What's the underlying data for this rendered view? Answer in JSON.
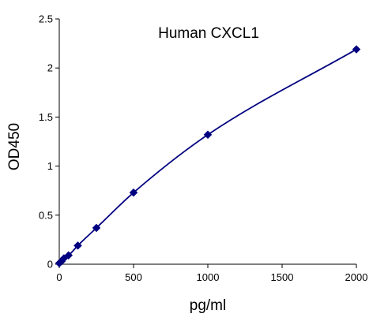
{
  "chart_data": {
    "type": "scatter",
    "title": "Human  CXCL1",
    "xlabel": "pg/ml",
    "ylabel": "OD450",
    "xlim": [
      0,
      2000
    ],
    "ylim": [
      0,
      2.5
    ],
    "x_ticks": [
      0,
      500,
      1000,
      1500,
      2000
    ],
    "x_tick_labels": [
      "0",
      "500",
      "1000",
      "1500",
      "2000"
    ],
    "y_ticks": [
      0,
      0.5,
      1,
      1.5,
      2,
      2.5
    ],
    "y_tick_labels": [
      "0",
      "0.5",
      "1",
      "1.5",
      "2",
      "2.5"
    ],
    "grid": false,
    "legend": "none",
    "marker": "diamond",
    "series": [
      {
        "x": [
          0,
          15.6,
          31.25,
          62.5,
          125,
          250,
          500,
          1000,
          2000
        ],
        "y": [
          0.01,
          0.03,
          0.06,
          0.09,
          0.19,
          0.37,
          0.73,
          1.32,
          2.19
        ]
      }
    ],
    "colors": {
      "series": "#000080",
      "axis": "#000000"
    }
  }
}
